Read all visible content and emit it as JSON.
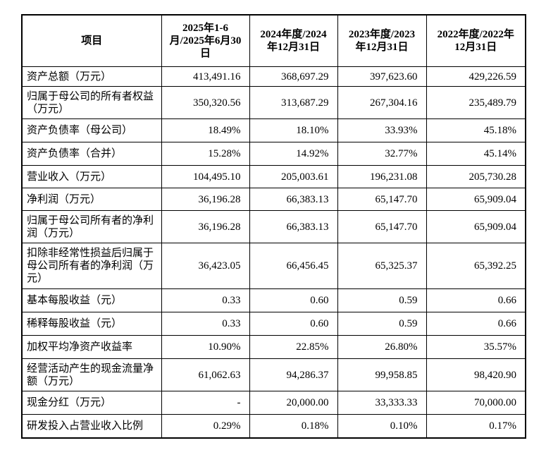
{
  "table": {
    "header": [
      "项目",
      "2025年1-6月/2025年6月30日",
      "2024年度/2024年12月31日",
      "2023年度/2023年12月31日",
      "2022年度/2022年12月31日"
    ],
    "rows": [
      [
        "资产总额（万元）",
        "413,491.16",
        "368,697.29",
        "397,623.60",
        "429,226.59"
      ],
      [
        "归属于母公司的所有者权益（万元）",
        "350,320.56",
        "313,687.29",
        "267,304.16",
        "235,489.79"
      ],
      [
        "资产负债率（母公司）",
        "18.49%",
        "18.10%",
        "33.93%",
        "45.18%"
      ],
      [
        "资产负债率（合并）",
        "15.28%",
        "14.92%",
        "32.77%",
        "45.14%"
      ],
      [
        "营业收入（万元）",
        "104,495.10",
        "205,003.61",
        "196,231.08",
        "205,730.28"
      ],
      [
        "净利润（万元）",
        "36,196.28",
        "66,383.13",
        "65,147.70",
        "65,909.04"
      ],
      [
        "归属于母公司所有者的净利润（万元）",
        "36,196.28",
        "66,383.13",
        "65,147.70",
        "65,909.04"
      ],
      [
        "扣除非经常性损益后归属于母公司所有者的净利润（万元）",
        "36,423.05",
        "66,456.45",
        "65,325.37",
        "65,392.25"
      ],
      [
        "基本每股收益（元）",
        "0.33",
        "0.60",
        "0.59",
        "0.66"
      ],
      [
        "稀释每股收益（元）",
        "0.33",
        "0.60",
        "0.59",
        "0.66"
      ],
      [
        "加权平均净资产收益率",
        "10.90%",
        "22.85%",
        "26.80%",
        "35.57%"
      ],
      [
        "经营活动产生的现金流量净额（万元）",
        "61,062.63",
        "94,286.37",
        "99,958.85",
        "98,420.90"
      ],
      [
        "现金分红（万元）",
        "-",
        "20,000.00",
        "33,333.33",
        "70,000.00"
      ],
      [
        "研发投入占营业收入比例",
        "0.29%",
        "0.18%",
        "0.10%",
        "0.17%"
      ]
    ]
  }
}
